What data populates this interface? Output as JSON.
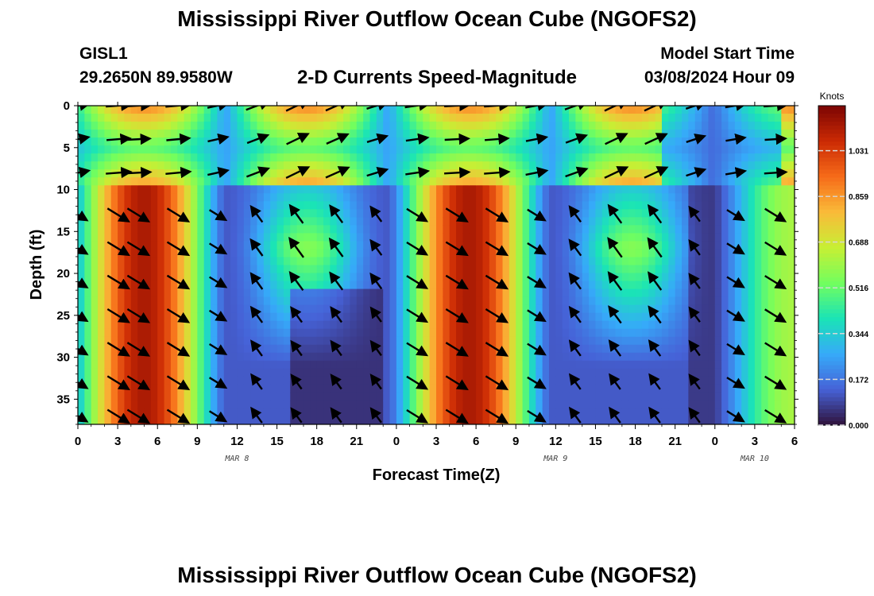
{
  "header": {
    "title": "Mississippi River Outflow Ocean Cube (NGOFS2)",
    "station": "GISL1",
    "coords": "29.2650N  89.9580W",
    "variable": "2-D Currents Speed-Magnitude",
    "model_start_label": "Model Start Time",
    "model_start_value": "03/08/2024 Hour 09"
  },
  "footer": {
    "title": "Mississippi River Outflow Ocean Cube (NGOFS2)"
  },
  "chart_data": {
    "type": "heatmap",
    "xlabel": "Forecast Time(Z)",
    "ylabel": "Depth (ft)",
    "x_range_hours": [
      0,
      54
    ],
    "y_range_ft": [
      0,
      38
    ],
    "y_ticks": [
      0,
      5,
      10,
      15,
      20,
      25,
      30,
      35
    ],
    "x_ticks": [
      {
        "h": 0,
        "label": "0"
      },
      {
        "h": 3,
        "label": "3"
      },
      {
        "h": 6,
        "label": "6"
      },
      {
        "h": 9,
        "label": "9"
      },
      {
        "h": 12,
        "label": "12"
      },
      {
        "h": 15,
        "label": "15"
      },
      {
        "h": 18,
        "label": "18"
      },
      {
        "h": 21,
        "label": "21"
      },
      {
        "h": 24,
        "label": "0"
      },
      {
        "h": 27,
        "label": "3"
      },
      {
        "h": 30,
        "label": "6"
      },
      {
        "h": 33,
        "label": "9"
      },
      {
        "h": 36,
        "label": "12"
      },
      {
        "h": 39,
        "label": "15"
      },
      {
        "h": 42,
        "label": "18"
      },
      {
        "h": 45,
        "label": "21"
      },
      {
        "h": 48,
        "label": "0"
      },
      {
        "h": 51,
        "label": "3"
      },
      {
        "h": 54,
        "label": "6"
      }
    ],
    "day_labels": [
      {
        "h": 12,
        "label": "MAR 8"
      },
      {
        "h": 36,
        "label": "MAR 9"
      },
      {
        "h": 51,
        "label": "MAR 10"
      }
    ],
    "colorbar": {
      "title": "Knots",
      "min": 0,
      "max": 1.2,
      "ticks": [
        0.0,
        0.172,
        0.344,
        0.516,
        0.688,
        0.859,
        1.031
      ],
      "tick_labels": [
        "0.000",
        "0.172",
        "0.344",
        "0.516",
        "0.688",
        "0.859",
        "1.031"
      ],
      "colors": [
        "#30123b",
        "#4662d7",
        "#36aaf9",
        "#1ae4b6",
        "#72fe5e",
        "#c7ef34",
        "#faba39",
        "#f66b19",
        "#cb2a04",
        "#7a0403"
      ]
    },
    "speed_model": {
      "near_surface_band_ft": [
        0,
        9.5
      ],
      "near_surface_minimum_ft": 5,
      "note": "speed high (>1.0 kt) at hours ~3-7 and ~27-33 below 10 ft; low at hours ~18-21 and ~48-51"
    },
    "vectors": {
      "columns_h": [
        0,
        3,
        4.5,
        7.5,
        10.5,
        13.5,
        16.5,
        19.5,
        22.5,
        25.5,
        28.5,
        31.5,
        34.5,
        37.5,
        40.5,
        43.5,
        46.5,
        49.5,
        52.5
      ],
      "rows_ft": [
        0,
        4,
        8,
        13,
        17,
        21,
        25,
        29,
        33,
        37
      ],
      "surface_direction": "upward-right (flood)",
      "deep_direction": "downward-right (ebb) at high-speed times, upward-left near hours 10-23"
    }
  }
}
